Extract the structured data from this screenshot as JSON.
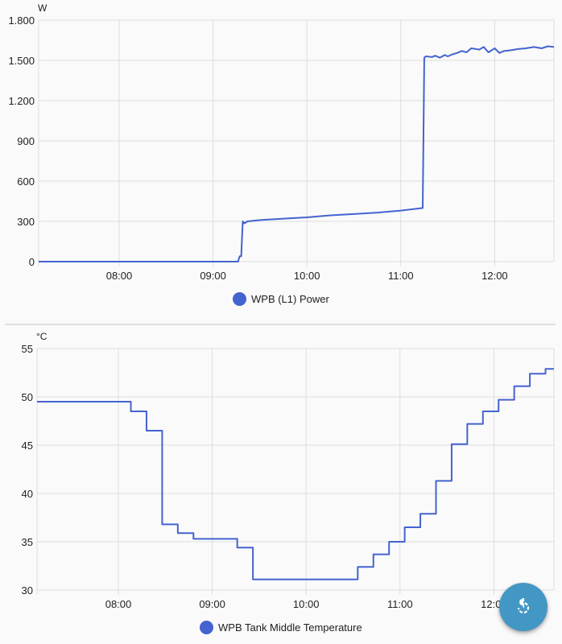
{
  "colors": {
    "series": "#4463cf",
    "fab": "#4397c4",
    "grid": "#dedede",
    "background": "#fafafa"
  },
  "fab": {
    "icon": "refresh-icon",
    "label": "Refresh"
  },
  "chart_data": [
    {
      "type": "line",
      "title": "",
      "ylabel": "W",
      "xlabel": "",
      "ylim": [
        0,
        1800
      ],
      "yticks": [
        0,
        300,
        600,
        900,
        1200,
        1500,
        1800
      ],
      "ytick_labels": [
        "0",
        "300",
        "600",
        "900",
        "1.200",
        "1.500",
        "1.800"
      ],
      "xticks": [
        "08:00",
        "09:00",
        "10:00",
        "11:00",
        "12:00"
      ],
      "xlim": [
        "07:08",
        "12:38"
      ],
      "grid": true,
      "legend_position": "bottom",
      "series": [
        {
          "name": "WPB (L1) Power",
          "x": [
            "07:08",
            "08:00",
            "09:00",
            "09:16",
            "09:17",
            "09:18",
            "09:19",
            "09:20",
            "09:22",
            "09:30",
            "09:45",
            "10:00",
            "10:15",
            "10:30",
            "10:45",
            "11:00",
            "11:14",
            "11:15",
            "11:16",
            "11:20",
            "11:22",
            "11:25",
            "11:28",
            "11:30",
            "11:33",
            "11:36",
            "11:39",
            "11:42",
            "11:45",
            "11:48",
            "11:50",
            "11:53",
            "11:56",
            "12:00",
            "12:03",
            "12:06",
            "12:10",
            "12:15",
            "12:20",
            "12:25",
            "12:30",
            "12:34",
            "12:38"
          ],
          "values": [
            0,
            0,
            0,
            0,
            40,
            40,
            300,
            285,
            300,
            310,
            320,
            330,
            345,
            355,
            365,
            380,
            400,
            1520,
            1530,
            1525,
            1535,
            1520,
            1540,
            1530,
            1545,
            1555,
            1570,
            1560,
            1590,
            1585,
            1580,
            1600,
            1560,
            1590,
            1555,
            1570,
            1575,
            1585,
            1590,
            1600,
            1590,
            1605,
            1600
          ]
        }
      ]
    },
    {
      "type": "line",
      "title": "",
      "ylabel": "°C",
      "xlabel": "",
      "ylim": [
        30,
        55
      ],
      "yticks": [
        30,
        35,
        40,
        45,
        50,
        55
      ],
      "ytick_labels": [
        "30",
        "35",
        "40",
        "45",
        "50",
        "55"
      ],
      "xticks": [
        "08:00",
        "09:00",
        "10:00",
        "11:00",
        "12:00"
      ],
      "xlim": [
        "07:08",
        "12:38"
      ],
      "grid": true,
      "legend_position": "bottom",
      "step": true,
      "series": [
        {
          "name": "WPB Tank Middle Temperature",
          "x": [
            "07:08",
            "08:08",
            "08:18",
            "08:28",
            "08:38",
            "08:48",
            "09:16",
            "09:26",
            "10:33",
            "10:43",
            "10:53",
            "11:03",
            "11:13",
            "11:23",
            "11:33",
            "11:43",
            "11:53",
            "12:03",
            "12:13",
            "12:23",
            "12:33",
            "12:38"
          ],
          "values": [
            49.5,
            48.5,
            46.5,
            36.8,
            35.9,
            35.3,
            34.4,
            31.1,
            32.4,
            33.7,
            35.0,
            36.5,
            37.9,
            41.3,
            45.1,
            47.2,
            48.5,
            49.7,
            51.1,
            52.4,
            52.9,
            52.9
          ]
        }
      ]
    }
  ]
}
